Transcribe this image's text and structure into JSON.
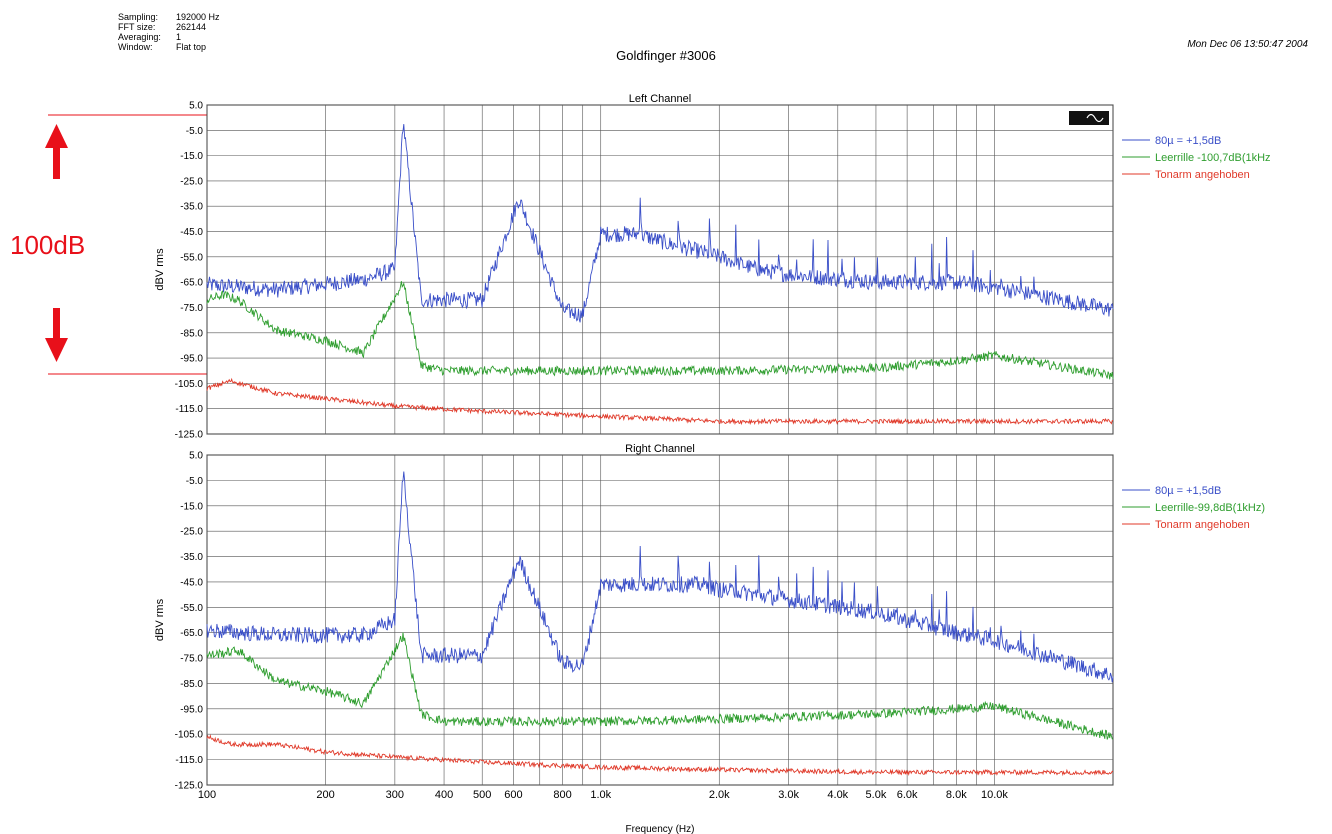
{
  "header": {
    "meta": [
      {
        "key": "Sampling:",
        "value": "192000 Hz"
      },
      {
        "key": "FFT size:",
        "value": "262144"
      },
      {
        "key": "Averaging:",
        "value": "1"
      },
      {
        "key": "Window:",
        "value": "Flat top"
      }
    ],
    "title": "Goldfinger #3006",
    "date": "Mon Dec 06 13:50:47 2004"
  },
  "annotation": {
    "label": "100dB",
    "color": "#e8101a"
  },
  "colors": {
    "blue": "#3a4fc8",
    "green": "#2f9e2f",
    "red": "#e03a2a"
  },
  "chart_data": [
    {
      "type": "line",
      "title": "Left Channel",
      "ylabel": "dBV rms",
      "xscale": "log",
      "xlim": [
        100,
        20000
      ],
      "ylim": [
        -125,
        5
      ],
      "yticks": [
        "5.0",
        "-5.0",
        "-15.0",
        "-25.0",
        "-35.0",
        "-45.0",
        "-55.0",
        "-65.0",
        "-75.0",
        "-85.0",
        "-95.0",
        "-105.0",
        "-115.0",
        "-125.0"
      ],
      "grid": true,
      "legend_position": "right",
      "series": [
        {
          "name": "80µ = +1,5dB",
          "color": "#3a4fc8",
          "x": [
            100,
            150,
            250,
            300,
            315,
            350,
            500,
            620,
            800,
            900,
            1000,
            1250,
            1500,
            1800,
            2000,
            2500,
            3000,
            5000,
            8000,
            10000,
            20000
          ],
          "y": [
            -66,
            -68,
            -64,
            -60,
            -1,
            -72,
            -72,
            -32,
            -76,
            -78,
            -46,
            -46,
            -50,
            -53,
            -55,
            -60,
            -62,
            -65,
            -65,
            -67,
            -76
          ]
        },
        {
          "name": "Leerrille -100,7dB(1kHz",
          "color": "#2f9e2f",
          "x": [
            100,
            110,
            120,
            150,
            200,
            250,
            315,
            350,
            400,
            500,
            800,
            1000,
            2000,
            5000,
            8000,
            10000,
            20000
          ],
          "y": [
            -72,
            -70,
            -72,
            -84,
            -88,
            -93,
            -65,
            -98,
            -100,
            -100,
            -100,
            -100,
            -100,
            -99,
            -96,
            -94,
            -102
          ]
        },
        {
          "name": "Tonarm angehoben",
          "color": "#e03a2a",
          "x": [
            100,
            115,
            150,
            200,
            300,
            500,
            1000,
            2000,
            5000,
            10000,
            20000
          ],
          "y": [
            -107,
            -104,
            -109,
            -111,
            -114,
            -116,
            -118,
            -120,
            -120,
            -120,
            -120
          ]
        }
      ]
    },
    {
      "type": "line",
      "title": "Right Channel",
      "ylabel": "dBV rms",
      "xlabel": "Frequency (Hz)",
      "xscale": "log",
      "xlim": [
        100,
        20000
      ],
      "ylim": [
        -125,
        5
      ],
      "yticks": [
        "5.0",
        "-5.0",
        "-15.0",
        "-25.0",
        "-35.0",
        "-45.0",
        "-55.0",
        "-65.0",
        "-75.0",
        "-85.0",
        "-95.0",
        "-105.0",
        "-115.0",
        "-125.0"
      ],
      "xticks": [
        {
          "v": 100,
          "label": "100"
        },
        {
          "v": 200,
          "label": "200"
        },
        {
          "v": 300,
          "label": "300"
        },
        {
          "v": 400,
          "label": "400"
        },
        {
          "v": 500,
          "label": "500"
        },
        {
          "v": 600,
          "label": "600"
        },
        {
          "v": 800,
          "label": "800"
        },
        {
          "v": 1000,
          "label": "1.0k"
        },
        {
          "v": 2000,
          "label": "2.0k"
        },
        {
          "v": 3000,
          "label": "3.0k"
        },
        {
          "v": 4000,
          "label": "4.0k"
        },
        {
          "v": 5000,
          "label": "5.0k"
        },
        {
          "v": 6000,
          "label": "6.0k"
        },
        {
          "v": 8000,
          "label": "8.0k"
        },
        {
          "v": 10000,
          "label": "10.0k"
        }
      ],
      "grid": true,
      "legend_position": "right",
      "series": [
        {
          "name": "80µ = +1,5dB",
          "color": "#3a4fc8",
          "x": [
            100,
            150,
            250,
            300,
            315,
            350,
            500,
            620,
            800,
            900,
            1000,
            1250,
            1500,
            1800,
            2000,
            2500,
            3000,
            5000,
            8000,
            10000,
            20000
          ],
          "y": [
            -64,
            -66,
            -66,
            -60,
            -1,
            -74,
            -74,
            -36,
            -77,
            -78,
            -46,
            -46,
            -46,
            -46,
            -48,
            -50,
            -52,
            -57,
            -65,
            -68,
            -82
          ]
        },
        {
          "name": "Leerrille-99,8dB(1kHz)",
          "color": "#2f9e2f",
          "x": [
            100,
            110,
            120,
            150,
            200,
            250,
            315,
            350,
            400,
            500,
            800,
            1000,
            2000,
            5000,
            8000,
            10000,
            20000
          ],
          "y": [
            -74,
            -73,
            -72,
            -84,
            -88,
            -93,
            -66,
            -97,
            -100,
            -100,
            -100,
            -100,
            -99,
            -97,
            -95,
            -94,
            -106
          ]
        },
        {
          "name": "Tonarm angehoben",
          "color": "#e03a2a",
          "x": [
            100,
            115,
            150,
            200,
            300,
            500,
            1000,
            2000,
            5000,
            10000,
            20000
          ],
          "y": [
            -106,
            -109,
            -109,
            -112,
            -114,
            -116,
            -118,
            -119,
            -120,
            -120,
            -120
          ]
        }
      ]
    }
  ]
}
